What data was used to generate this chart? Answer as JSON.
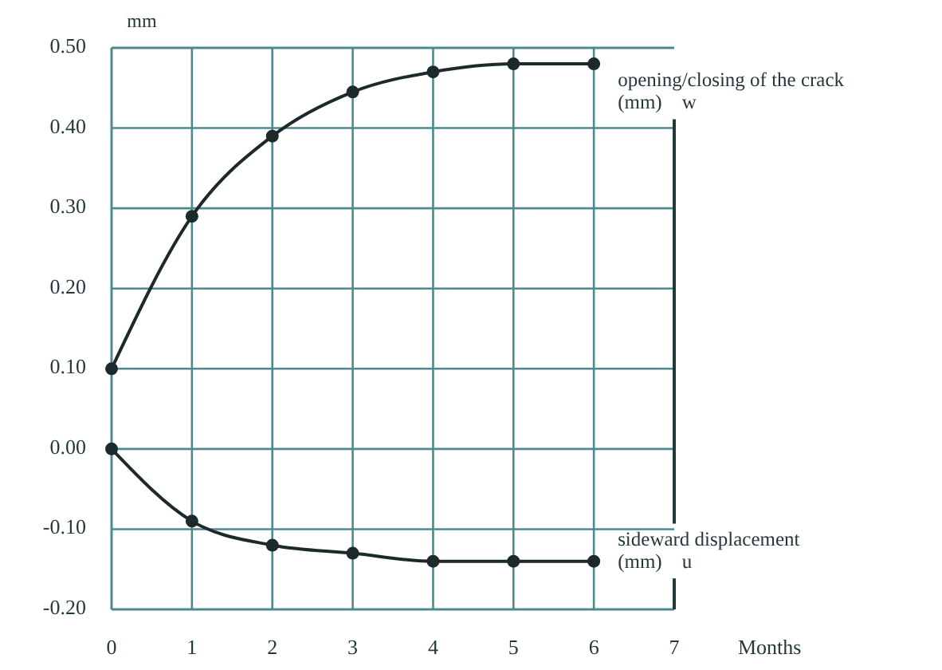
{
  "chart_data": {
    "type": "line",
    "xlabel": "Months",
    "ylabel": "mm",
    "x": [
      0,
      1,
      2,
      3,
      4,
      5,
      6
    ],
    "xlim": [
      0,
      7
    ],
    "xticks": [
      0,
      1,
      2,
      3,
      4,
      5,
      6,
      7
    ],
    "ylim": [
      -0.2,
      0.5
    ],
    "yticks": [
      {
        "value": -0.2,
        "label": "-0.20"
      },
      {
        "value": -0.1,
        "label": "-0.10"
      },
      {
        "value": 0,
        "label": "0.00"
      },
      {
        "value": 0.1,
        "label": "0.10"
      },
      {
        "value": 0.2,
        "label": "0.20"
      },
      {
        "value": 0.3,
        "label": "0.30"
      },
      {
        "value": 0.4,
        "label": "0.40"
      },
      {
        "value": 0.5,
        "label": "0.50"
      }
    ],
    "series": [
      {
        "name": "opening/closing of the crack\n(mm)    w",
        "color": "#1c2a2c",
        "values": [
          0.1,
          0.29,
          0.39,
          0.445,
          0.47,
          0.48,
          0.48
        ]
      },
      {
        "name": "sideward displacement\n(mm)    u",
        "color": "#1c2a2c",
        "values": [
          0.0,
          -0.09,
          -0.12,
          -0.13,
          -0.14,
          -0.14,
          -0.14
        ]
      }
    ],
    "grid": true,
    "marker": "circle",
    "line_style": "solid"
  }
}
